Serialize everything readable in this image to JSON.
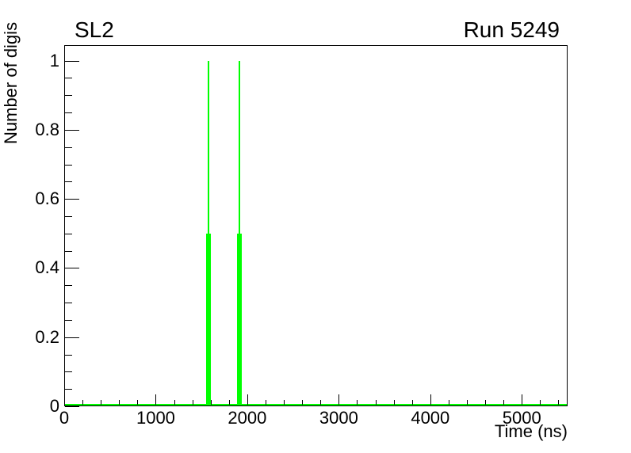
{
  "page": {
    "background": "#ffffff",
    "frame_color": "#000000",
    "text_color": "#000000"
  },
  "chart_data": {
    "type": "bar",
    "title": "SL2",
    "annotation_right": "Run 5249",
    "xlabel": "Time (ns)",
    "ylabel": "Number of digis",
    "xlim": [
      0,
      5500
    ],
    "ylim": [
      0,
      1.045
    ],
    "x_major_ticks": [
      0,
      1000,
      2000,
      3000,
      4000,
      5000
    ],
    "x_major_labels": [
      "0",
      "1000",
      "2000",
      "3000",
      "4000",
      "5000"
    ],
    "x_minor_step": 200,
    "y_major_ticks": [
      0,
      0.2,
      0.4,
      0.6,
      0.8,
      1
    ],
    "y_major_labels": [
      "0",
      "0.2",
      "0.4",
      "0.6",
      "0.8",
      "1"
    ],
    "y_minor_step": 0.05,
    "grid": false,
    "legend": null,
    "series_color": "#00ff00",
    "baseline": {
      "value": 0,
      "thickness_px": 2
    },
    "spikes": [
      {
        "x_ns": 1580,
        "peak": 1.0,
        "thick_segment_top": 0.5,
        "bin_width_ns": 50
      },
      {
        "x_ns": 1911,
        "peak": 1.0,
        "thick_segment_top": 0.5,
        "bin_width_ns": 50
      }
    ]
  }
}
